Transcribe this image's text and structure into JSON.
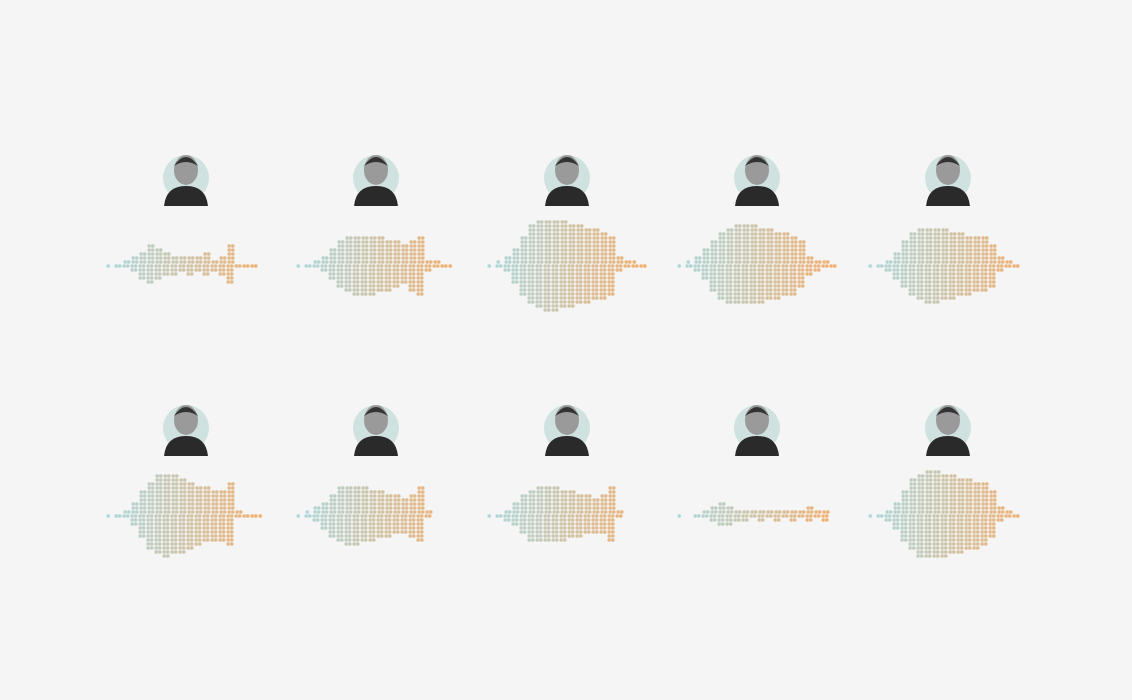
{
  "chart_data": {
    "type": "beeswarm",
    "xlim": [
      0,
      20
    ],
    "bins": [
      0,
      1,
      2,
      3,
      4,
      5,
      6,
      7,
      8,
      9,
      10,
      11,
      12,
      13,
      14,
      15,
      16,
      17,
      18,
      19,
      20
    ],
    "tick_labels": false,
    "colors": [
      "#9fd2d9",
      "#f0a258"
    ],
    "series": [
      {
        "values": [
          1,
          2,
          4,
          8,
          14,
          20,
          16,
          12,
          10,
          8,
          10,
          8,
          12,
          6,
          10,
          20,
          2,
          2,
          2,
          0
        ]
      },
      {
        "values": [
          1,
          2,
          4,
          8,
          16,
          24,
          28,
          30,
          30,
          30,
          28,
          26,
          24,
          20,
          26,
          30,
          6,
          4,
          2,
          1
        ]
      },
      {
        "values": [
          1,
          3,
          8,
          18,
          30,
          40,
          44,
          46,
          46,
          44,
          42,
          40,
          38,
          36,
          34,
          30,
          8,
          4,
          3,
          2
        ]
      },
      {
        "values": [
          1,
          3,
          8,
          16,
          26,
          34,
          38,
          40,
          40,
          40,
          38,
          36,
          34,
          32,
          30,
          24,
          10,
          6,
          4,
          2
        ]
      },
      {
        "values": [
          1,
          2,
          6,
          14,
          24,
          32,
          36,
          38,
          38,
          36,
          34,
          32,
          30,
          28,
          28,
          22,
          8,
          4,
          2,
          0
        ]
      },
      {
        "values": [
          1,
          2,
          4,
          12,
          24,
          34,
          40,
          42,
          40,
          38,
          34,
          30,
          28,
          26,
          26,
          32,
          4,
          2,
          2,
          1
        ]
      },
      {
        "values": [
          1,
          3,
          8,
          14,
          22,
          28,
          30,
          30,
          28,
          26,
          24,
          22,
          20,
          18,
          22,
          28,
          4,
          0,
          0,
          0
        ]
      },
      {
        "values": [
          1,
          2,
          6,
          12,
          20,
          26,
          28,
          28,
          28,
          26,
          24,
          22,
          20,
          18,
          20,
          28,
          4,
          0,
          0,
          0
        ]
      },
      {
        "values": [
          1,
          0,
          2,
          4,
          8,
          12,
          10,
          6,
          6,
          4,
          6,
          4,
          6,
          4,
          6,
          4,
          8,
          4,
          6,
          0
        ]
      },
      {
        "values": [
          1,
          2,
          6,
          14,
          26,
          36,
          42,
          44,
          44,
          42,
          40,
          38,
          36,
          34,
          32,
          24,
          8,
          4,
          2,
          0
        ]
      }
    ]
  }
}
